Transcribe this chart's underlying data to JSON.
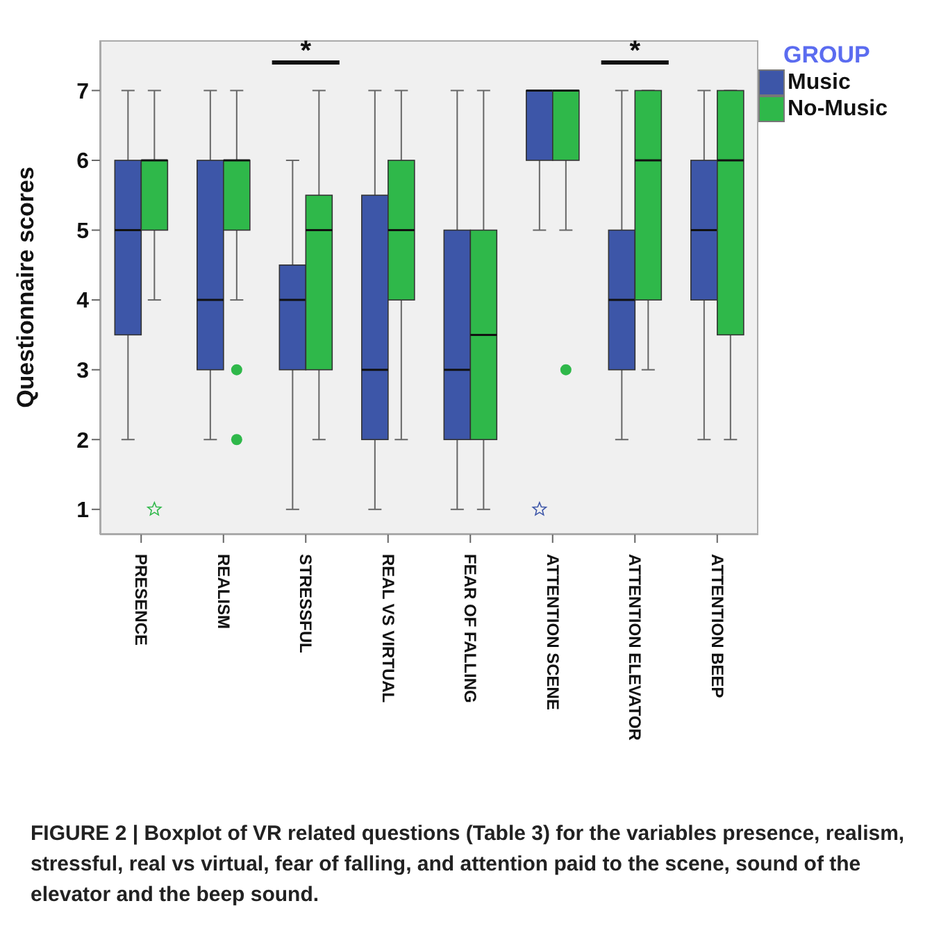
{
  "chart_data": {
    "type": "box",
    "ylabel": "Questionnaire scores",
    "legend_title": "GROUP",
    "legend": "top right",
    "ylim": [
      0.64,
      7.72
    ],
    "yticks": [
      1,
      2,
      3,
      4,
      5,
      6,
      7
    ],
    "categories": [
      "PRESENCE",
      "REALISM",
      "STRESSFUL",
      "REAL VS VIRTUAL",
      "FEAR OF FALLING",
      "ATTENTION SCENE",
      "ATTENTION ELEVATOR",
      "ATTENTION BEEP"
    ],
    "series": [
      {
        "name": "Music",
        "color": "#3d56a8",
        "boxes": [
          {
            "low": 2,
            "q1": 3.5,
            "median": 5,
            "q3": 6,
            "high": 7
          },
          {
            "low": 2,
            "q1": 3,
            "median": 4,
            "q3": 6,
            "high": 7
          },
          {
            "low": 1,
            "q1": 3,
            "median": 4,
            "q3": 4.5,
            "high": 6
          },
          {
            "low": 1,
            "q1": 2,
            "median": 3,
            "q3": 5.5,
            "high": 7
          },
          {
            "low": 1,
            "q1": 2,
            "median": 3,
            "q3": 5,
            "high": 7
          },
          {
            "low": 5,
            "q1": 6,
            "median": 7,
            "q3": 7,
            "high": 7,
            "outliers": [
              1
            ]
          },
          {
            "low": 2,
            "q1": 3,
            "median": 4,
            "q3": 5,
            "high": 7
          },
          {
            "low": 2,
            "q1": 4,
            "median": 5,
            "q3": 6,
            "high": 7
          }
        ]
      },
      {
        "name": "No-Music",
        "color": "#2fb84a",
        "boxes": [
          {
            "low": 4,
            "q1": 5,
            "median": 6,
            "q3": 6,
            "high": 7,
            "outliers": [
              1
            ]
          },
          {
            "low": 4,
            "q1": 5,
            "median": 6,
            "q3": 6,
            "high": 7,
            "outliers": [
              3,
              2
            ]
          },
          {
            "low": 2,
            "q1": 3,
            "median": 5,
            "q3": 5.5,
            "high": 7
          },
          {
            "low": 2,
            "q1": 4,
            "median": 5,
            "q3": 6,
            "high": 7
          },
          {
            "low": 1,
            "q1": 2,
            "median": 3.5,
            "q3": 5,
            "high": 7
          },
          {
            "low": 5,
            "q1": 6,
            "median": 7,
            "q3": 7,
            "high": 7,
            "outliers": [
              3
            ]
          },
          {
            "low": 3,
            "q1": 4,
            "median": 6,
            "q3": 7,
            "high": 7
          },
          {
            "low": 2,
            "q1": 3.5,
            "median": 6,
            "q3": 7,
            "high": 7
          }
        ]
      }
    ],
    "annotations": [
      "*",
      "*",
      "FIGURE 2 | Boxplot of VR related questions (Table 3) for the variables presence, realism, stressful, real vs virtual, fear of falling, and attention paid to the scene, sound of the elevator and the beep sound."
    ]
  }
}
